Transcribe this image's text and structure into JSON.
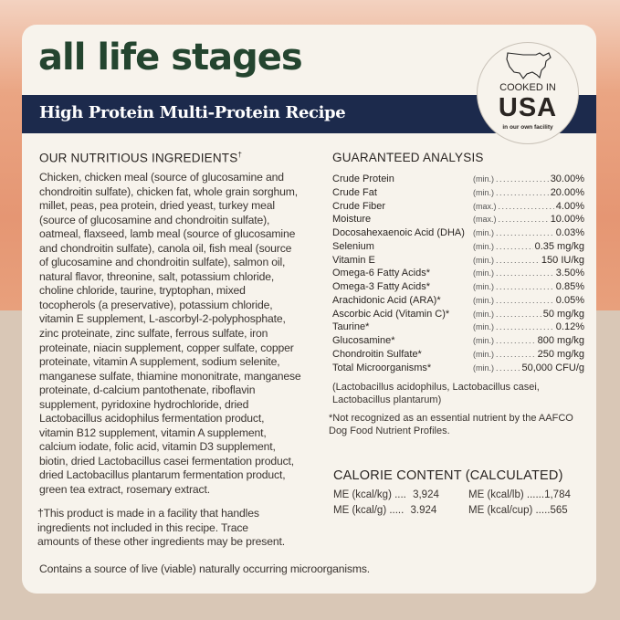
{
  "title": "all life stages",
  "subtitle": "High Protein Multi-Protein Recipe",
  "badge": {
    "icon": "usa-map-icon",
    "line1": "COOKED IN",
    "line2": "USA",
    "line3": "in our own facility"
  },
  "ingredients": {
    "heading": "OUR NUTRITIOUS INGREDIENTS",
    "heading_mark": "†",
    "lines": [
      "Chicken, chicken meal (source of glucosamine and",
      "chondroitin sulfate), chicken fat, whole grain sorghum,",
      "millet, peas, pea protein, dried yeast, turkey meal",
      "(source of glucosamine and chondroitin sulfate),",
      "oatmeal, flaxseed, lamb meal (source of glucosamine",
      "and chondroitin sulfate), canola oil, fish meal (source",
      "of glucosamine and chondroitin sulfate), salmon oil,",
      "natural flavor, threonine, salt, potassium chloride,",
      "choline chloride, taurine, tryptophan, mixed",
      "tocopherols (a preservative), potassium chloride,",
      "vitamin E supplement, L-ascorbyl-2-polyphosphate,",
      "zinc proteinate, zinc sulfate, ferrous sulfate, iron",
      "proteinate, niacin supplement, copper sulfate, copper",
      "proteinate, vitamin A supplement, sodium selenite,",
      "manganese sulfate, thiamine mononitrate, manganese",
      "proteinate, d-calcium pantothenate, riboflavin",
      "supplement, pyridoxine hydrochloride, dried",
      "Lactobacillus acidophilus fermentation product,",
      "vitamin B12 supplement, vitamin A supplement,",
      "calcium iodate, folic acid, vitamin D3 supplement,",
      "biotin, dried Lactobacillus casei fermentation product,",
      "dried Lactobacillus plantarum fermentation product,",
      "green tea extract, rosemary extract."
    ],
    "footnote": [
      "†This product is made in a facility that handles",
      "ingredients not included in this recipe. Trace",
      "amounts of these other ingredients may be present."
    ]
  },
  "analysis": {
    "heading": "GUARANTEED ANALYSIS",
    "rows": [
      {
        "name": "Crude Protein",
        "qual": "(min.)",
        "value": "30.00%"
      },
      {
        "name": "Crude Fat",
        "qual": "(min.)",
        "value": "20.00%"
      },
      {
        "name": "Crude Fiber",
        "qual": "(max.)",
        "value": "4.00%"
      },
      {
        "name": "Moisture",
        "qual": "(max.)",
        "value": "10.00%"
      },
      {
        "name": "Docosahexaenoic Acid (DHA)",
        "qual": "(min.)",
        "value": "0.03%"
      },
      {
        "name": "Selenium",
        "qual": "(min.)",
        "value": "0.35 mg/kg"
      },
      {
        "name": "Vitamin E",
        "qual": "(min.)",
        "value": "150 IU/kg"
      },
      {
        "name": "Omega-6 Fatty Acids*",
        "qual": "(min.)",
        "value": "3.50%"
      },
      {
        "name": "Omega-3 Fatty Acids*",
        "qual": "(min.)",
        "value": "0.85%"
      },
      {
        "name": "Arachidonic Acid (ARA)*",
        "qual": "(min.)",
        "value": "0.05%"
      },
      {
        "name": "Ascorbic Acid (Vitamin C)*",
        "qual": "(min.)",
        "value": "50 mg/kg"
      },
      {
        "name": "Taurine*",
        "qual": "(min.)",
        "value": "0.12%"
      },
      {
        "name": "Glucosamine*",
        "qual": "(min.)",
        "value": "800 mg/kg"
      },
      {
        "name": "Chondroitin Sulfate*",
        "qual": "(min.)",
        "value": "250 mg/kg"
      },
      {
        "name": "Total Microorganisms*",
        "qual": "(min.)",
        "value": "50,000 CFU/g"
      }
    ],
    "organisms": [
      "(Lactobacillus acidophilus, Lactobacillus casei,",
      "Lactobacillus plantarum)"
    ],
    "note": [
      "*Not recognized as an essential nutrient by the AAFCO",
      "Dog Food Nutrient Profiles."
    ]
  },
  "calorie": {
    "heading": "CALORIE CONTENT (CALCULATED)",
    "items": [
      {
        "label": "ME (kcal/kg)",
        "value": "3,924"
      },
      {
        "label": "ME (kcal/lb)",
        "value": "1,784"
      },
      {
        "label": "ME (kcal/g)",
        "value": "3.924"
      },
      {
        "label": "ME (kcal/cup)",
        "value": "565"
      }
    ]
  },
  "footer": "Contains a source of live (viable) naturally occurring microorganisms."
}
